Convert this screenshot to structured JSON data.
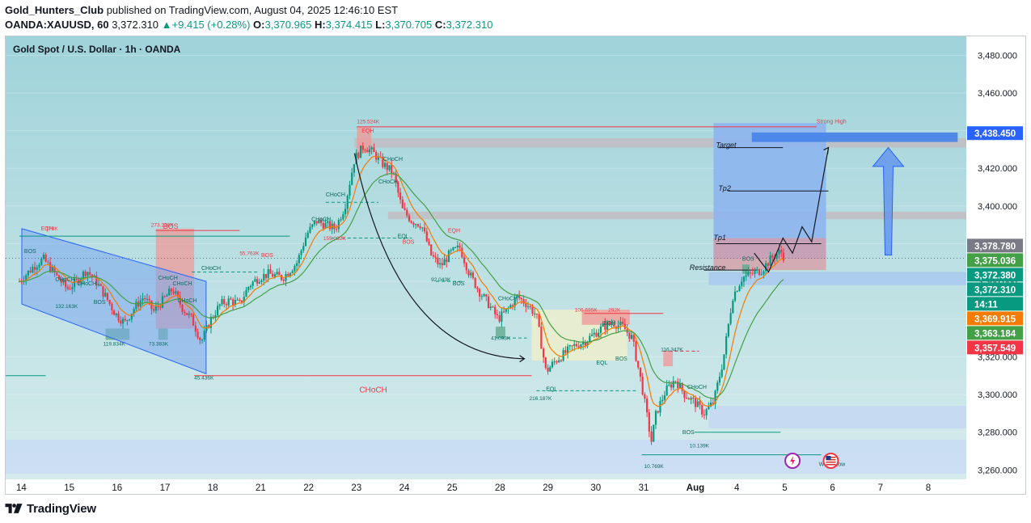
{
  "header": {
    "author": "Gold_Hunters_Club",
    "published_text": " published on TradingView.com, August 04, 2025 12:46:10 EST",
    "symbol": "OANDA:XAUUSD, 60",
    "last": "3,372.310",
    "change": "+9.415 (+0.28%)",
    "o_label": "O:",
    "o_value": "3,370.965",
    "h_label": "H:",
    "h_value": "3,374.415",
    "l_label": "L:",
    "l_value": "3,370.705",
    "c_label": "C:",
    "c_value": "3,372.310"
  },
  "chart_title": "Gold Spot / U.S. Dollar · 1h · OANDA",
  "footer": {
    "brand": "TradingView"
  },
  "colors": {
    "background_top": "#9fd3da",
    "background_bottom": "#d8ecec",
    "bull": "#089981",
    "bear": "#f23645",
    "ema_fast": "#f57c00",
    "ema_slow": "#43a047",
    "zone_blue": "#9ec7f0",
    "zone_red": "#ef9a9a",
    "zone_grey": "#c0bfc4"
  },
  "chart_data": {
    "type": "candlestick",
    "title": "Gold Spot / U.S. Dollar · 1h · OANDA",
    "y_axis": {
      "min": 3255,
      "max": 3490,
      "ticks": [
        "3,480.000",
        "3,460.000",
        "3,440.000",
        "3,420.000",
        "3,400.000",
        "3,380.000",
        "3,360.000",
        "3,340.000",
        "3,320.000",
        "3,300.000",
        "3,280.000",
        "3,260.000"
      ],
      "tick_values": [
        3480,
        3460,
        3440,
        3420,
        3400,
        3380,
        3360,
        3340,
        3320,
        3300,
        3280,
        3260
      ]
    },
    "x_axis": {
      "labels": [
        "14",
        "15",
        "16",
        "17",
        "18",
        "21",
        "22",
        "23",
        "24",
        "25",
        "28",
        "29",
        "30",
        "31",
        "Aug",
        "4",
        "5",
        "6",
        "7",
        "8"
      ]
    },
    "close_path": [
      [
        0,
        3360
      ],
      [
        0.3,
        3368
      ],
      [
        0.5,
        3372
      ],
      [
        0.8,
        3362
      ],
      [
        1.0,
        3356
      ],
      [
        1.2,
        3360
      ],
      [
        1.4,
        3366
      ],
      [
        1.6,
        3360
      ],
      [
        1.8,
        3352
      ],
      [
        2.0,
        3343
      ],
      [
        2.2,
        3338
      ],
      [
        2.4,
        3346
      ],
      [
        2.6,
        3352
      ],
      [
        2.8,
        3344
      ],
      [
        3.0,
        3350
      ],
      [
        3.2,
        3356
      ],
      [
        3.4,
        3346
      ],
      [
        3.6,
        3340
      ],
      [
        3.8,
        3328
      ],
      [
        4.0,
        3340
      ],
      [
        4.2,
        3348
      ],
      [
        4.4,
        3350
      ],
      [
        4.6,
        3348
      ],
      [
        4.8,
        3358
      ],
      [
        5.0,
        3362
      ],
      [
        5.2,
        3364
      ],
      [
        5.5,
        3362
      ],
      [
        5.8,
        3370
      ],
      [
        6.0,
        3385
      ],
      [
        6.2,
        3392
      ],
      [
        6.4,
        3390
      ],
      [
        6.6,
        3388
      ],
      [
        6.8,
        3400
      ],
      [
        7.0,
        3425
      ],
      [
        7.2,
        3432
      ],
      [
        7.4,
        3428
      ],
      [
        7.6,
        3422
      ],
      [
        7.8,
        3418
      ],
      [
        8.0,
        3398
      ],
      [
        8.2,
        3392
      ],
      [
        8.4,
        3390
      ],
      [
        8.6,
        3374
      ],
      [
        8.8,
        3368
      ],
      [
        9.0,
        3375
      ],
      [
        9.2,
        3378
      ],
      [
        9.4,
        3364
      ],
      [
        9.6,
        3355
      ],
      [
        9.8,
        3348
      ],
      [
        10.0,
        3340
      ],
      [
        10.2,
        3345
      ],
      [
        10.4,
        3352
      ],
      [
        10.6,
        3348
      ],
      [
        10.8,
        3342
      ],
      [
        11.0,
        3312
      ],
      [
        11.2,
        3318
      ],
      [
        11.4,
        3322
      ],
      [
        11.6,
        3326
      ],
      [
        11.8,
        3328
      ],
      [
        12.0,
        3332
      ],
      [
        12.2,
        3336
      ],
      [
        12.4,
        3338
      ],
      [
        12.6,
        3336
      ],
      [
        12.8,
        3330
      ],
      [
        13.0,
        3305
      ],
      [
        13.1,
        3290
      ],
      [
        13.2,
        3275
      ],
      [
        13.3,
        3290
      ],
      [
        13.5,
        3302
      ],
      [
        13.7,
        3308
      ],
      [
        13.9,
        3300
      ],
      [
        14.1,
        3296
      ],
      [
        14.3,
        3290
      ],
      [
        14.5,
        3296
      ],
      [
        14.7,
        3318
      ],
      [
        14.9,
        3352
      ],
      [
        15.1,
        3362
      ],
      [
        15.3,
        3364
      ],
      [
        15.5,
        3366
      ],
      [
        15.7,
        3372
      ],
      [
        15.9,
        3376
      ],
      [
        16.0,
        3372
      ]
    ],
    "current_price": 3372.31,
    "price_labels": [
      {
        "text": "3,438.450",
        "value": 3438.45,
        "color": "#2962ff"
      },
      {
        "text": "3,378.780",
        "value": 3378.78,
        "color": "#787b86"
      },
      {
        "text": "3,375.036",
        "value": 3375.036,
        "color": "#43a047"
      },
      {
        "text": "3,372.380",
        "value": 3372.38,
        "color": "#089981"
      },
      {
        "text": "3,372.310",
        "value": 3372.31,
        "color": "#089981"
      },
      {
        "text": "14:11",
        "value": 3369.1,
        "color": "#089981"
      },
      {
        "text": "3,369.915",
        "value": 3369.915,
        "color": "#f57c00"
      },
      {
        "text": "3,363.184",
        "value": 3363.184,
        "color": "#43a047"
      },
      {
        "text": "3,357.549",
        "value": 3357.549,
        "color": "#f23645"
      }
    ],
    "annotations": [
      {
        "text": "Target",
        "x": 14.55,
        "y": 3431
      },
      {
        "text": "Tp2",
        "x": 14.6,
        "y": 3408
      },
      {
        "text": "Tp1",
        "x": 14.5,
        "y": 3382
      },
      {
        "text": "Resistance",
        "x": 14.0,
        "y": 3366
      },
      {
        "text": "Strong High",
        "x": 16.65,
        "y": 3444
      },
      {
        "text": "Weak Low",
        "x": 16.7,
        "y": 3262
      },
      {
        "text": "CHoCH",
        "x": 7.1,
        "y": 3301
      },
      {
        "text": "BOS",
        "x": 3.0,
        "y": 3388
      },
      {
        "text": "CHoCH",
        "x": 3.8,
        "y": 3366
      },
      {
        "text": "CHoCH",
        "x": 6.1,
        "y": 3392
      },
      {
        "text": "CHoCH",
        "x": 7.6,
        "y": 3424
      },
      {
        "text": "CHoCH",
        "x": 10.0,
        "y": 3350
      },
      {
        "text": "CHoCH",
        "x": 13.95,
        "y": 3303
      },
      {
        "text": "EQH",
        "x": 0.45,
        "y": 3387
      },
      {
        "text": "EQH",
        "x": 7.15,
        "y": 3439
      },
      {
        "text": "EQH",
        "x": 8.95,
        "y": 3386
      },
      {
        "text": "EQH",
        "x": 12.2,
        "y": 3337
      },
      {
        "text": "EQL",
        "x": 11.0,
        "y": 3302
      },
      {
        "text": "EQL",
        "x": 12.05,
        "y": 3316
      },
      {
        "text": "EQL",
        "x": 7.9,
        "y": 3383
      },
      {
        "text": "BOS",
        "x": 0.1,
        "y": 3375
      },
      {
        "text": "BOS",
        "x": 1.55,
        "y": 3348
      },
      {
        "text": "BOS",
        "x": 5.05,
        "y": 3373
      },
      {
        "text": "BOS",
        "x": 9.05,
        "y": 3358
      },
      {
        "text": "BOS",
        "x": 8.0,
        "y": 3380
      },
      {
        "text": "BOS",
        "x": 12.45,
        "y": 3318
      },
      {
        "text": "BOS",
        "x": 13.85,
        "y": 3279
      },
      {
        "text": "BOS",
        "x": 15.1,
        "y": 3371
      },
      {
        "text": "CHoCH",
        "x": 0.75,
        "y": 3360
      },
      {
        "text": "CHoCH",
        "x": 2.9,
        "y": 3361
      },
      {
        "text": "CHoCH",
        "x": 3.3,
        "y": 3349
      },
      {
        "text": "CHoCH",
        "x": 6.4,
        "y": 3405
      },
      {
        "text": "CHoCH",
        "x": 7.5,
        "y": 3412
      },
      {
        "text": "CHoCH",
        "x": 1.2,
        "y": 3358
      },
      {
        "text": "CHoCH",
        "x": 3.2,
        "y": 3358
      }
    ],
    "volume_labels": [
      {
        "text": "273.238K",
        "x": 2.75,
        "y": 3389
      },
      {
        "text": "55.763K",
        "x": 4.6,
        "y": 3374
      },
      {
        "text": "155.032K",
        "x": 6.35,
        "y": 3382
      },
      {
        "text": "125.524K",
        "x": 7.05,
        "y": 3444
      },
      {
        "text": "132.163K",
        "x": 0.75,
        "y": 3346
      },
      {
        "text": "119.834K",
        "x": 1.75,
        "y": 3326
      },
      {
        "text": "73.383K",
        "x": 2.7,
        "y": 3326
      },
      {
        "text": "45.436K",
        "x": 3.65,
        "y": 3308
      },
      {
        "text": "92.043K",
        "x": 8.6,
        "y": 3360
      },
      {
        "text": "41.093K",
        "x": 9.85,
        "y": 3329
      },
      {
        "text": "216.187K",
        "x": 10.65,
        "y": 3297
      },
      {
        "text": "106.695K",
        "x": 11.6,
        "y": 3344
      },
      {
        "text": "292K",
        "x": 12.3,
        "y": 3344
      },
      {
        "text": "116.347K",
        "x": 13.4,
        "y": 3323
      },
      {
        "text": "10.139K",
        "x": 14.0,
        "y": 3272
      },
      {
        "text": "10.769K",
        "x": 13.05,
        "y": 3261
      },
      {
        "text": "178K",
        "x": 0.55,
        "y": 3387
      }
    ]
  }
}
